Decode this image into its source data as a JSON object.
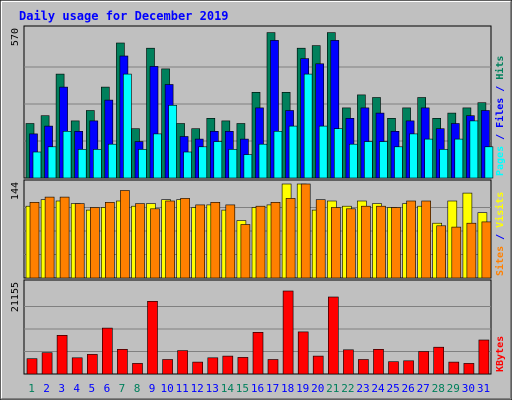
{
  "colors": {
    "background": "#C0C0C0",
    "plot_background": "#C0C0C0",
    "title": "#0000FF",
    "hits": "#00805C",
    "files": "#0000FF",
    "pages": "#00FFFF",
    "visits": "#FFFF00",
    "sites": "#FF8000",
    "kbytes": "#FF0000",
    "weekend_label": "#00805C",
    "weekday_label": "#0000FF"
  },
  "chart_data": {
    "type": "bar",
    "title": "Daily usage for December 2019",
    "categories": [
      "1",
      "2",
      "3",
      "4",
      "5",
      "6",
      "7",
      "8",
      "9",
      "10",
      "11",
      "12",
      "13",
      "14",
      "15",
      "16",
      "17",
      "18",
      "19",
      "20",
      "21",
      "22",
      "23",
      "24",
      "25",
      "26",
      "27",
      "28",
      "29",
      "30",
      "31"
    ],
    "weekend_days": [
      "1",
      "7",
      "8",
      "14",
      "15",
      "21",
      "22",
      "28",
      "29"
    ],
    "panels": [
      {
        "id": "hits-files-pages",
        "max_label": "570",
        "ymax": 570,
        "grid": true,
        "legend": [
          {
            "text": "Pages",
            "color_key": "pages"
          },
          {
            "text": " / ",
            "color_key": "title"
          },
          {
            "text": "Files",
            "color_key": "files"
          },
          {
            "text": " / ",
            "color_key": "title"
          },
          {
            "text": "Hits",
            "color_key": "hits"
          }
        ],
        "series": [
          {
            "name": "Hits",
            "color_key": "hits",
            "values": [
              210,
              240,
              400,
              220,
              260,
              350,
              520,
              190,
              500,
              420,
              210,
              190,
              230,
              220,
              210,
              330,
              560,
              330,
              500,
              510,
              560,
              270,
              320,
              310,
              230,
              270,
              310,
              230,
              250,
              270,
              290
            ]
          },
          {
            "name": "Files",
            "color_key": "files",
            "values": [
              170,
              200,
              350,
              180,
              220,
              300,
              470,
              140,
              430,
              360,
              160,
              150,
              180,
              180,
              150,
              270,
              530,
              260,
              460,
              440,
              530,
              230,
              270,
              250,
              180,
              220,
              270,
              190,
              210,
              240,
              260
            ]
          },
          {
            "name": "Pages",
            "color_key": "pages",
            "values": [
              100,
              120,
              180,
              110,
              110,
              130,
              400,
              110,
              170,
              280,
              100,
              120,
              140,
              110,
              90,
              130,
              180,
              200,
              400,
              200,
              190,
              130,
              140,
              140,
              120,
              170,
              150,
              110,
              150,
              220,
              120
            ]
          }
        ]
      },
      {
        "id": "visits-sites",
        "max_label": "144",
        "ymax": 144,
        "grid": true,
        "legend": [
          {
            "text": "Sites",
            "color_key": "sites"
          },
          {
            "text": " / ",
            "color_key": "title"
          },
          {
            "text": "Visits",
            "color_key": "visits"
          }
        ],
        "series": [
          {
            "name": "Visits",
            "color_key": "visits",
            "values": [
              110,
              120,
              118,
              114,
              104,
              108,
              118,
              110,
              114,
              120,
              120,
              108,
              112,
              104,
              88,
              108,
              112,
              144,
              144,
              104,
              118,
              110,
              118,
              114,
              108,
              114,
              110,
              84,
              118,
              130,
              100
            ]
          },
          {
            "name": "Sites",
            "color_key": "sites",
            "values": [
              116,
              124,
              124,
              114,
              108,
              116,
              134,
              114,
              106,
              118,
              122,
              112,
              116,
              112,
              82,
              110,
              116,
              122,
              144,
              120,
              108,
              106,
              110,
              110,
              108,
              118,
              118,
              80,
              78,
              84,
              86
            ]
          }
        ]
      },
      {
        "id": "kbytes",
        "max_label": "21155",
        "ymax": 21155,
        "grid": true,
        "legend": [
          {
            "text": "KBytes",
            "color_key": "kbytes"
          }
        ],
        "series": [
          {
            "name": "KBytes",
            "color_key": "kbytes",
            "values": [
              3600,
              5000,
              9100,
              3800,
              4600,
              10800,
              5800,
              2500,
              17100,
              3400,
              5500,
              2800,
              3800,
              4200,
              3900,
              9800,
              3400,
              19500,
              9900,
              4200,
              18100,
              5700,
              3400,
              5800,
              2900,
              3100,
              5300,
              6300,
              2800,
              2500,
              8000
            ]
          }
        ]
      }
    ]
  }
}
